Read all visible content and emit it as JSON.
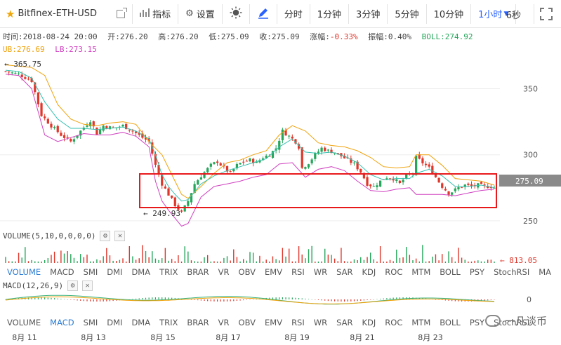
{
  "toolbar": {
    "symbol": "Bitfinex-ETH-USD",
    "indicators_label": "指标",
    "settings_label": "设置",
    "timeframes": [
      "分时",
      "1分钟",
      "3分钟",
      "5分钟",
      "10分钟",
      "1小时"
    ],
    "active_timeframe": "1小时",
    "refresh_label": "6秒"
  },
  "info": {
    "time_label": "时间:",
    "time": "2018-08-24 20:00",
    "open_label": "开:",
    "open": "276.20",
    "high_label": "高:",
    "high": "276.20",
    "low_label": "低:",
    "low": "275.09",
    "close_label": "收:",
    "close": "275.09",
    "change_label": "涨幅:",
    "change": "-0.33%",
    "amplitude_label": "振幅:",
    "amplitude": "0.40%",
    "boll": "BOLL:274.92",
    "ub": "UB:276.69",
    "lb": "LB:273.15"
  },
  "annotations": {
    "high_marker": "365.75",
    "low_marker": "249.93",
    "last_price": "275.09",
    "volume_value": "813.05"
  },
  "volume_header": "VOLUME(5,10,0,0,0,0)",
  "macd_header": "MACD(12,26,9)",
  "indicator_tabs_1": [
    "VOLUME",
    "MACD",
    "SMI",
    "DMI",
    "DMA",
    "TRIX",
    "BRAR",
    "VR",
    "OBV",
    "EMV",
    "RSI",
    "WR",
    "SAR",
    "KDJ",
    "ROC",
    "MTM",
    "BOLL",
    "PSY",
    "StochRSI",
    "MA"
  ],
  "indicator_tabs_2": [
    "VOLUME",
    "MACD",
    "SMI",
    "DMI",
    "DMA",
    "TRIX",
    "BRAR",
    "VR",
    "OBV",
    "EMV",
    "RSI",
    "WR",
    "SAR",
    "KDJ",
    "ROC",
    "MTM",
    "BOLL",
    "PSY",
    "StochRSI"
  ],
  "active_tab_1": "VOLUME",
  "active_tab_2": "MACD",
  "watermark": "一凡谈币",
  "colors": {
    "up": "#26a65b",
    "down": "#e0372b",
    "ub": "#f0a20a",
    "mid": "#36c0b0",
    "lb": "#d040c0",
    "highlight": "#e8191b",
    "tab_active": "#2b7cd3"
  },
  "chart_data": {
    "type": "candlestick",
    "y_axis": {
      "ticks": [
        250,
        300,
        350
      ],
      "ylim": [
        242,
        372
      ]
    },
    "x_ticks": [
      "8月 11",
      "8月 13",
      "8月 15",
      "8月 17",
      "8月 19",
      "8月 21",
      "8月 23"
    ],
    "macd_axis_ticks": [
      0
    ],
    "close_path": [
      [
        0,
        363
      ],
      [
        4,
        361
      ],
      [
        8,
        356
      ],
      [
        11,
        330
      ],
      [
        14,
        322
      ],
      [
        17,
        315
      ],
      [
        20,
        310
      ],
      [
        23,
        318
      ],
      [
        26,
        326
      ],
      [
        28,
        316
      ],
      [
        30,
        322
      ],
      [
        33,
        320
      ],
      [
        36,
        322
      ],
      [
        39,
        318
      ],
      [
        42,
        313
      ],
      [
        44,
        310
      ],
      [
        46,
        292
      ],
      [
        48,
        278
      ],
      [
        50,
        270
      ],
      [
        52,
        262
      ],
      [
        54,
        256
      ],
      [
        56,
        265
      ],
      [
        58,
        278
      ],
      [
        60,
        284
      ],
      [
        63,
        292
      ],
      [
        65,
        295
      ],
      [
        67,
        290
      ],
      [
        69,
        286
      ],
      [
        71,
        292
      ],
      [
        73,
        295
      ],
      [
        75,
        296
      ],
      [
        77,
        294
      ],
      [
        79,
        298
      ],
      [
        81,
        300
      ],
      [
        83,
        305
      ],
      [
        85,
        318
      ],
      [
        87,
        314
      ],
      [
        89,
        310
      ],
      [
        90,
        306
      ],
      [
        91,
        290
      ],
      [
        93,
        294
      ],
      [
        95,
        300
      ],
      [
        97,
        305
      ],
      [
        99,
        303
      ],
      [
        101,
        302
      ],
      [
        103,
        299
      ],
      [
        105,
        296
      ],
      [
        107,
        293
      ],
      [
        109,
        287
      ],
      [
        111,
        278
      ],
      [
        113,
        276
      ],
      [
        115,
        280
      ],
      [
        117,
        283
      ],
      [
        119,
        282
      ],
      [
        121,
        278
      ],
      [
        123,
        284
      ],
      [
        125,
        286
      ],
      [
        126,
        298
      ],
      [
        128,
        294
      ],
      [
        130,
        290
      ],
      [
        132,
        283
      ],
      [
        134,
        276
      ],
      [
        136,
        271
      ],
      [
        137,
        272
      ],
      [
        139,
        275
      ],
      [
        141,
        277
      ],
      [
        143,
        276
      ],
      [
        145,
        277
      ],
      [
        147,
        276
      ],
      [
        149,
        276
      ],
      [
        150,
        275.09
      ]
    ],
    "bollinger": {
      "ub": [
        [
          0,
          368
        ],
        [
          4,
          367
        ],
        [
          8,
          366
        ],
        [
          12,
          360
        ],
        [
          16,
          338
        ],
        [
          20,
          327
        ],
        [
          24,
          323
        ],
        [
          28,
          322
        ],
        [
          32,
          324
        ],
        [
          36,
          325
        ],
        [
          40,
          323
        ],
        [
          44,
          310
        ],
        [
          46,
          305
        ],
        [
          48,
          300
        ],
        [
          50,
          290
        ],
        [
          52,
          280
        ],
        [
          54,
          270
        ],
        [
          56,
          267
        ],
        [
          60,
          276
        ],
        [
          64,
          286
        ],
        [
          68,
          294
        ],
        [
          72,
          296
        ],
        [
          76,
          300
        ],
        [
          80,
          303
        ],
        [
          84,
          315
        ],
        [
          88,
          322
        ],
        [
          92,
          318
        ],
        [
          96,
          309
        ],
        [
          100,
          307
        ],
        [
          104,
          306
        ],
        [
          108,
          303
        ],
        [
          112,
          298
        ],
        [
          116,
          291
        ],
        [
          120,
          290
        ],
        [
          124,
          291
        ],
        [
          126,
          300
        ],
        [
          130,
          300
        ],
        [
          134,
          292
        ],
        [
          138,
          282
        ],
        [
          142,
          281
        ],
        [
          146,
          280
        ],
        [
          150,
          277
        ]
      ],
      "mid": [
        [
          0,
          364
        ],
        [
          4,
          363
        ],
        [
          8,
          358
        ],
        [
          12,
          340
        ],
        [
          16,
          327
        ],
        [
          20,
          320
        ],
        [
          24,
          320
        ],
        [
          28,
          319
        ],
        [
          32,
          320
        ],
        [
          36,
          321
        ],
        [
          40,
          318
        ],
        [
          44,
          312
        ],
        [
          46,
          300
        ],
        [
          48,
          285
        ],
        [
          50,
          276
        ],
        [
          52,
          270
        ],
        [
          54,
          265
        ],
        [
          56,
          266
        ],
        [
          60,
          278
        ],
        [
          64,
          284
        ],
        [
          68,
          288
        ],
        [
          72,
          291
        ],
        [
          76,
          294
        ],
        [
          80,
          297
        ],
        [
          84,
          306
        ],
        [
          88,
          312
        ],
        [
          92,
          302
        ],
        [
          96,
          301
        ],
        [
          100,
          302
        ],
        [
          104,
          299
        ],
        [
          108,
          294
        ],
        [
          112,
          285
        ],
        [
          116,
          281
        ],
        [
          120,
          282
        ],
        [
          124,
          282
        ],
        [
          126,
          286
        ],
        [
          130,
          289
        ],
        [
          134,
          284
        ],
        [
          138,
          276
        ],
        [
          142,
          276
        ],
        [
          146,
          277
        ],
        [
          150,
          275
        ]
      ],
      "lb": [
        [
          0,
          361
        ],
        [
          4,
          360
        ],
        [
          8,
          350
        ],
        [
          12,
          315
        ],
        [
          16,
          310
        ],
        [
          20,
          313
        ],
        [
          24,
          316
        ],
        [
          28,
          315
        ],
        [
          32,
          315
        ],
        [
          36,
          317
        ],
        [
          40,
          314
        ],
        [
          44,
          306
        ],
        [
          46,
          280
        ],
        [
          48,
          265
        ],
        [
          50,
          258
        ],
        [
          52,
          252
        ],
        [
          54,
          246
        ],
        [
          56,
          248
        ],
        [
          60,
          268
        ],
        [
          64,
          276
        ],
        [
          68,
          278
        ],
        [
          72,
          280
        ],
        [
          76,
          283
        ],
        [
          80,
          285
        ],
        [
          84,
          293
        ],
        [
          88,
          294
        ],
        [
          92,
          283
        ],
        [
          96,
          289
        ],
        [
          100,
          291
        ],
        [
          104,
          288
        ],
        [
          108,
          280
        ],
        [
          112,
          273
        ],
        [
          116,
          272
        ],
        [
          120,
          274
        ],
        [
          124,
          275
        ],
        [
          126,
          270
        ],
        [
          130,
          270
        ],
        [
          134,
          270
        ],
        [
          138,
          269
        ],
        [
          142,
          271
        ],
        [
          146,
          273
        ],
        [
          150,
          274
        ]
      ]
    }
  }
}
